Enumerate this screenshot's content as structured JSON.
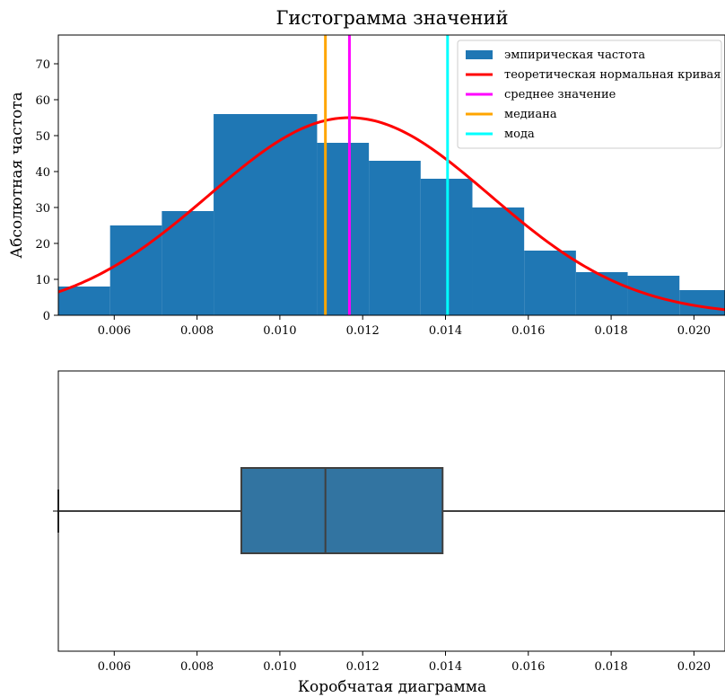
{
  "chart_data": [
    {
      "type": "bar",
      "subtype": "histogram",
      "title": "Гистограмма значений",
      "ylabel": "Абсолютная частота",
      "xlabel": "",
      "xlim": [
        0.00465,
        0.02075
      ],
      "ylim": [
        0,
        78
      ],
      "xticks": [
        0.006,
        0.008,
        0.01,
        0.012,
        0.014,
        0.016,
        0.018,
        0.02
      ],
      "xtick_labels": [
        "0.006",
        "0.008",
        "0.010",
        "0.012",
        "0.014",
        "0.016",
        "0.018",
        "0.020"
      ],
      "yticks": [
        0,
        10,
        20,
        30,
        40,
        50,
        60,
        70
      ],
      "ytick_labels": [
        "0",
        "10",
        "20",
        "30",
        "40",
        "50",
        "60",
        "70"
      ],
      "bins": [
        {
          "x0": 0.00465,
          "x1": 0.0059,
          "count": 8
        },
        {
          "x0": 0.0059,
          "x1": 0.00715,
          "count": 25
        },
        {
          "x0": 0.00715,
          "x1": 0.0084,
          "count": 29
        },
        {
          "x0": 0.0084,
          "x1": 0.0109,
          "count": 56
        },
        {
          "x0": 0.0109,
          "x1": 0.01215,
          "count": 48
        },
        {
          "x0": 0.01215,
          "x1": 0.0134,
          "count": 43
        },
        {
          "x0": 0.0134,
          "x1": 0.01465,
          "count": 38
        },
        {
          "x0": 0.01465,
          "x1": 0.0159,
          "count": 30
        },
        {
          "x0": 0.0159,
          "x1": 0.01715,
          "count": 18
        },
        {
          "x0": 0.01715,
          "x1": 0.0184,
          "count": 12
        },
        {
          "x0": 0.0184,
          "x1": 0.01965,
          "count": 11
        },
        {
          "x0": 0.01965,
          "x1": 0.02075,
          "count": 7
        }
      ],
      "normal_curve": {
        "mean": 0.01168,
        "std": 0.0034,
        "peak": 55
      },
      "vlines": [
        {
          "key": "median",
          "x": 0.0111
        },
        {
          "key": "mean",
          "x": 0.01168
        },
        {
          "key": "mode",
          "x": 0.01405
        }
      ],
      "legend": {
        "placement": "top-right",
        "entries": [
          {
            "key": "hist",
            "label": "эмпирическая частота",
            "kind": "patch",
            "color": "#1f77b4"
          },
          {
            "key": "curve",
            "label": "теоретическая нормальная кривая",
            "kind": "line",
            "color": "#ff0000"
          },
          {
            "key": "mean",
            "label": "среднее значение",
            "kind": "line",
            "color": "#ff00ff"
          },
          {
            "key": "median",
            "label": "медиана",
            "kind": "line",
            "color": "#ffa500"
          },
          {
            "key": "mode",
            "label": "мода",
            "kind": "line",
            "color": "#00ffff"
          }
        ]
      },
      "colors": {
        "bars": "#1f77b4",
        "curve": "#ff0000",
        "mean": "#ff00ff",
        "median": "#ffa500",
        "mode": "#00ffff"
      }
    },
    {
      "type": "box",
      "xlabel": "Коробчатая диаграмма",
      "xlim": [
        0.00465,
        0.02075
      ],
      "xticks": [
        0.006,
        0.008,
        0.01,
        0.012,
        0.014,
        0.016,
        0.018,
        0.02
      ],
      "xtick_labels": [
        "0.006",
        "0.008",
        "0.010",
        "0.012",
        "0.014",
        "0.016",
        "0.018",
        "0.020"
      ],
      "box": {
        "whisker_low": 0.00465,
        "q1": 0.00907,
        "median": 0.0111,
        "q3": 0.01393,
        "whisker_high": 0.02075
      },
      "colors": {
        "box": "#3274a1",
        "line": "#3f3f3f"
      }
    }
  ]
}
